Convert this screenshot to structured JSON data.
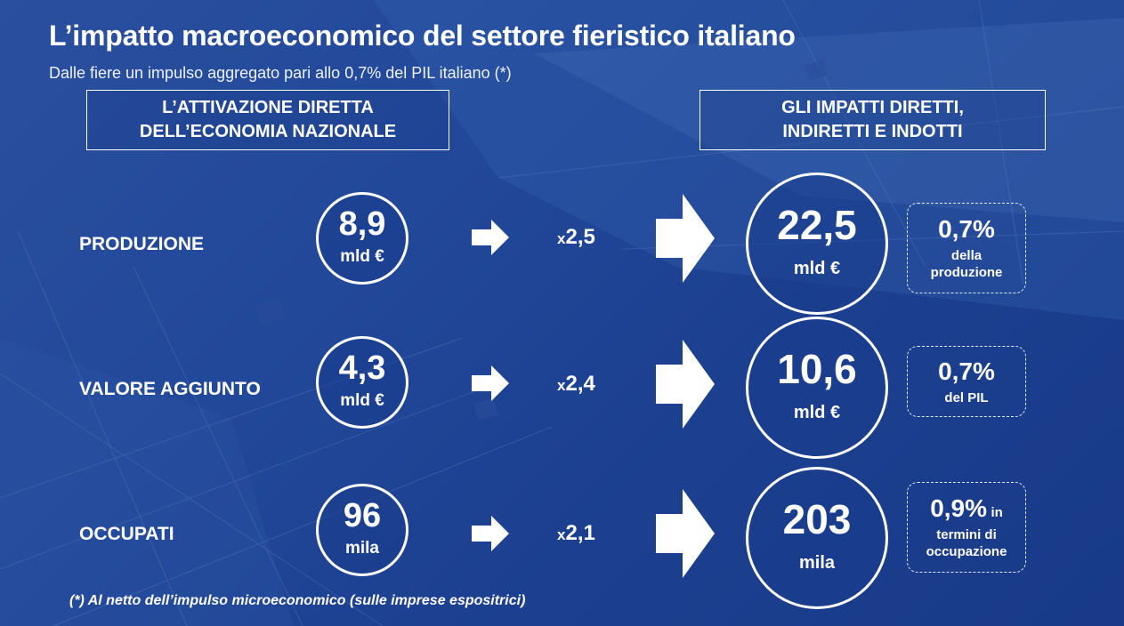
{
  "title": "L’impatto macroeconomico del settore fieristico italiano",
  "subtitle": "Dalle fiere un impulso aggregato pari allo 0,7% del PIL italiano (*)",
  "header_left": {
    "line1": "L’ATTIVAZIONE DIRETTA",
    "line2": "DELL’ECONOMIA NAZIONALE"
  },
  "header_right": {
    "line1": "GLI IMPATTI DIRETTI,",
    "line2": "INDIRETTI E INDOTTI"
  },
  "rows": [
    {
      "label": "PRODUZIONE",
      "direct_value": "8,9",
      "direct_unit": "mld €",
      "multiplier_prefix": "x",
      "multiplier_value": "2,5",
      "total_value": "22,5",
      "total_unit": "mld €",
      "share_pct": "0,7%",
      "share_suffix": "",
      "share_desc_1": "della",
      "share_desc_2": "produzione"
    },
    {
      "label": "VALORE AGGIUNTO",
      "direct_value": "4,3",
      "direct_unit": "mld €",
      "multiplier_prefix": "x",
      "multiplier_value": "2,4",
      "total_value": "10,6",
      "total_unit": "mld €",
      "share_pct": "0,7%",
      "share_suffix": "",
      "share_desc_1": "del PIL",
      "share_desc_2": ""
    },
    {
      "label": "OCCUPATI",
      "direct_value": "96",
      "direct_unit": "mila",
      "multiplier_prefix": "x",
      "multiplier_value": "2,1",
      "total_value": "203",
      "total_unit": "mila",
      "share_pct": "0,9%",
      "share_suffix": "in",
      "share_desc_1": "termini di",
      "share_desc_2": "occupazione"
    }
  ],
  "footnote": "(*) Al netto dell’impulso microeconomico (sulle imprese espositrici)",
  "colors": {
    "background": "#22489a",
    "text": "#ffffff"
  }
}
